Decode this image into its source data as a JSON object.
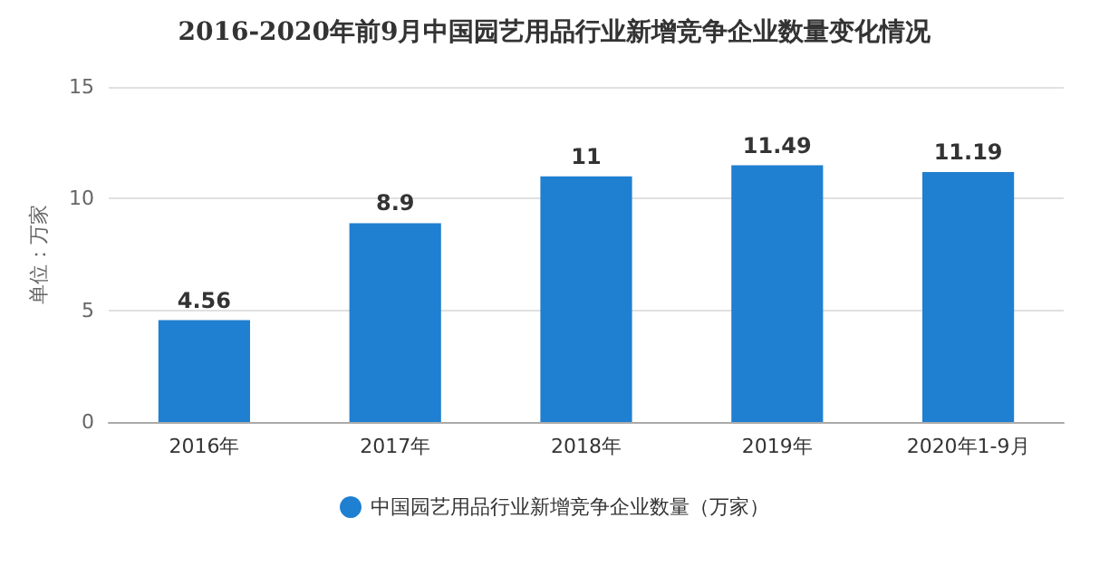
{
  "chart_data": {
    "type": "bar",
    "title": "2016-2020年前9月中国园艺用品行业新增竞争企业数量变化情况",
    "ylabel": "单位：万家",
    "categories": [
      "2016年",
      "2017年",
      "2018年",
      "2019年",
      "2020年1-9月"
    ],
    "series": [
      {
        "name": "中国园艺用品行业新增竞争企业数量（万家）",
        "color": "#1f7fd0",
        "values": [
          4.56,
          8.9,
          11,
          11.49,
          11.19
        ]
      }
    ],
    "ylim": [
      0,
      15
    ],
    "yticks": [
      0,
      5,
      10,
      15
    ],
    "grid": "y",
    "legend": "bottom",
    "data_labels": true
  }
}
